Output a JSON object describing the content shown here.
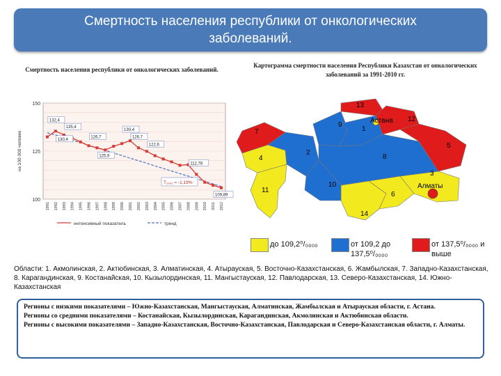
{
  "title": "Смертность населения республики от онкологических заболеваний.",
  "title_lines": [
    "Смертность населения республики от онкологических",
    "заболеваний."
  ],
  "left_caption": "Смертность населения республики от онкологических заболеваний.",
  "right_caption": "Картограмма смертности населения Республики Казахстан от онкологических заболеваний за 1991-2010 гг.",
  "colors": {
    "banner": "#4a7ab8",
    "yellow": "#f2ea1e",
    "blue": "#1f6fd1",
    "red": "#e01b1b",
    "box_border": "#2f5f9e"
  },
  "chart_data": {
    "type": "line",
    "ylabel": "на 100 000 человек",
    "ylim": [
      100,
      150
    ],
    "y_ticks": [
      "100",
      "125",
      "150"
    ],
    "x": [
      "1991",
      "1992",
      "1993",
      "1994",
      "1995",
      "1996",
      "1997",
      "1998",
      "1999",
      "2000",
      "2001",
      "2002",
      "2003",
      "2004",
      "2005",
      "2006",
      "2007",
      "2008",
      "2009",
      "2010",
      "2011",
      "2012"
    ],
    "series": [
      {
        "name": "интенсивный показатель",
        "values": [
          132.4,
          135.4,
          133.4,
          131.8,
          129.8,
          127.8,
          126.7,
          125.6,
          127.5,
          128.9,
          130.4,
          126.7,
          124.9,
          122.6,
          120.9,
          119.4,
          117.6,
          117.9,
          112.9,
          108.8,
          107.2,
          105.9
        ]
      },
      {
        "name": "тренд",
        "values": [
          134.5,
          133.4,
          132.1,
          130.7,
          129.4,
          128.0,
          126.7,
          125.4,
          124.0,
          122.7,
          121.3,
          120.0,
          118.7,
          117.3,
          116.0,
          114.6,
          113.3,
          112.0,
          110.6,
          109.3,
          107.9,
          106.6
        ]
      }
    ],
    "data_labels": [
      "132,4",
      "135,4",
      "130,4",
      "126,7",
      "125,9",
      "130,4",
      "126,7",
      "122,6",
      "112,78",
      "109,89"
    ],
    "annotation": "T₁₉₉₁ = -1,19%",
    "legend": [
      "интенсивный показатель",
      "тренд"
    ]
  },
  "map": {
    "region_numbers": [
      "1",
      "2",
      "3",
      "4",
      "5",
      "6",
      "7",
      "8",
      "9",
      "10",
      "11",
      "12",
      "13",
      "14"
    ],
    "cities": [
      "Астана",
      "Алматы"
    ]
  },
  "legend": [
    {
      "color": "yellow",
      "label": "до 109,2⁰/₀₀₀₀"
    },
    {
      "color": "blue",
      "label": "от 109,2 до 137,5⁰/₀₀₀₀"
    },
    {
      "color": "red",
      "label": "от 137,5⁰/₀₀₀₀ и выше"
    }
  ],
  "regions_text": "Области: 1. Акмолинская, 2. Актюбинская, 3. Алматинская, 4. Атырауская, 5. Восточно-Казахстанская, 6. Жамбылская, 7. Западно-Казахстанская, 8. Карагандинская, 9. Костанайская, 10. Кызылординская, 11. Мангыстауская, 12. Павлодарская, 13. Северо-Казахстанская, 14. Южно-Казахстанская",
  "summary": [
    "Регионы с низкими показателями – Южно-Казахстанская, Мангыстауская, Алматинская, Жамбылская и Атырауская области, г. Астана.",
    "Регионы со средними показателями – Костанайская, Кызылординская, Карагандинская, Акмолинская и Актюбинская области.",
    "Регионы с высокими показателями – Западно-Казахстанская, Восточно-Казахстанская, Павлодарская и Северо-Казахстанская области, г. Алматы."
  ]
}
